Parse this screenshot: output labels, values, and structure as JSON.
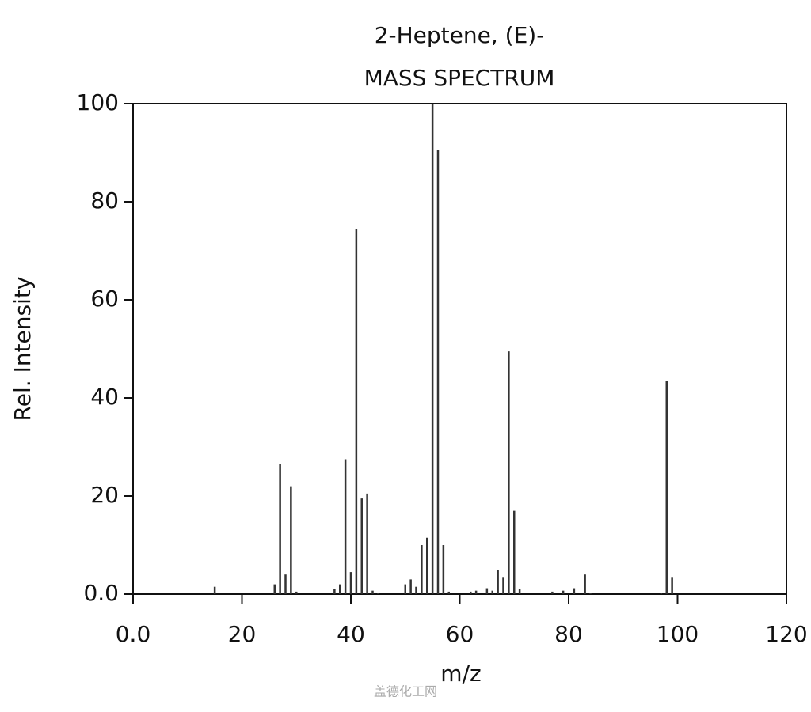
{
  "chart_data": {
    "type": "stick",
    "title": "2-Heptene, (E)-",
    "subtitle": "MASS SPECTRUM",
    "x_label": "m/z",
    "y_label": "Rel. Intensity",
    "watermark": "盖德化工网",
    "color": "#333333",
    "x": [
      15,
      26,
      27,
      28,
      29,
      30,
      37,
      38,
      39,
      40,
      41,
      42,
      43,
      44,
      45,
      50,
      51,
      52,
      53,
      54,
      55,
      56,
      57,
      58,
      62,
      63,
      65,
      66,
      67,
      68,
      69,
      70,
      71,
      77,
      79,
      81,
      83,
      84,
      97,
      98,
      99
    ],
    "values": [
      1.5,
      2,
      26.5,
      4,
      22,
      0.5,
      1,
      2,
      27.5,
      4.5,
      74.5,
      19.5,
      20.5,
      0.7,
      0.3,
      2,
      3,
      1.5,
      10,
      11.5,
      100,
      90.5,
      10,
      0.5,
      0.5,
      0.7,
      1.2,
      0.7,
      5,
      3.5,
      49.5,
      17,
      1,
      0.5,
      0.7,
      1.2,
      4,
      0.3,
      0.3,
      43.5,
      3.5
    ],
    "xlim": [
      0,
      120
    ],
    "xticks": [
      {
        "value": 0,
        "label": "0.0"
      },
      20,
      40,
      60,
      80,
      100,
      120
    ],
    "ylim": [
      0,
      100
    ],
    "yticks": [
      {
        "value": 0,
        "label": "0.0"
      },
      20,
      40,
      60,
      80,
      100
    ],
    "grid": false
  }
}
